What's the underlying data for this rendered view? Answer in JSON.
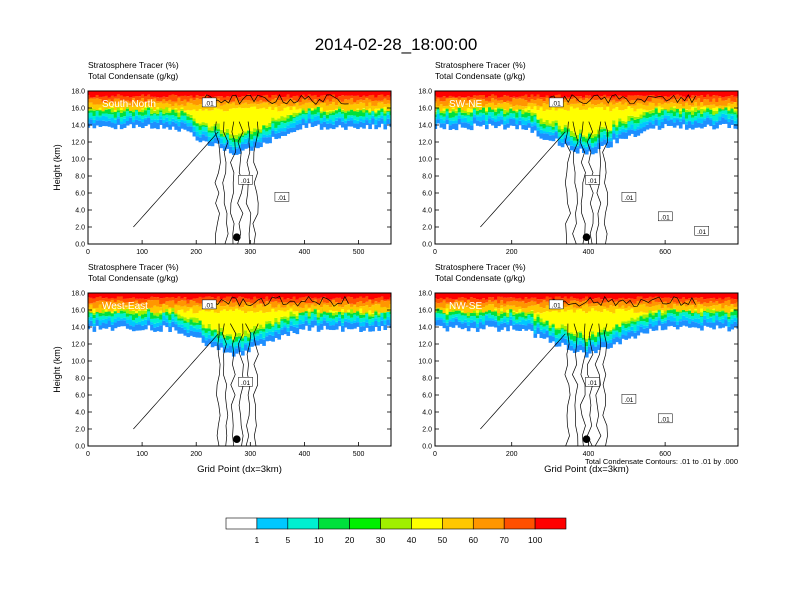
{
  "page_title": "2014-02-28_18:00:00",
  "footnote": "Total Condensate Contours: .01 to .01 by .000",
  "colorbar": {
    "levels": [
      "1",
      "5",
      "10",
      "20",
      "30",
      "40",
      "50",
      "60",
      "70",
      "100"
    ],
    "colors": [
      "#ffffff",
      "#1e8fff",
      "#00c8ff",
      "#00f0d0",
      "#00e03c",
      "#00f000",
      "#a0f000",
      "#ffff00",
      "#ffc800",
      "#ff9600",
      "#ff5000",
      "#ff0000"
    ]
  },
  "chart_data": [
    {
      "type": "heatmap",
      "panel_label": "South-North",
      "subtitle_line1": "Stratosphere Tracer   (%)",
      "subtitle_line2": "Total Condensate   (g/kg)",
      "ylabel": "Height (km)",
      "xlabel": "",
      "xlim": [
        0,
        560
      ],
      "ylim": [
        0,
        18
      ],
      "x_ticks": [
        0,
        100,
        200,
        300,
        400,
        500
      ],
      "y_ticks": [
        "0.0",
        "2.0",
        "4.0",
        "6.0",
        "8.0",
        "10.0",
        "12.0",
        "14.0",
        "16.0",
        "18.0"
      ],
      "contour_labels": [
        ".01",
        ".01",
        ".01"
      ],
      "marker_x": 275
    },
    {
      "type": "heatmap",
      "panel_label": "SW-NE",
      "subtitle_line1": "Stratosphere Tracer   (%)",
      "subtitle_line2": "Total Condensate   (g/kg)",
      "ylabel": "",
      "xlabel": "",
      "xlim": [
        0,
        790
      ],
      "ylim": [
        0,
        18
      ],
      "x_ticks": [
        0,
        200,
        400,
        600
      ],
      "y_ticks": [
        "0.0",
        "2.0",
        "4.0",
        "6.0",
        "8.0",
        "10.0",
        "12.0",
        "14.0",
        "16.0",
        "18.0"
      ],
      "contour_labels": [
        ".01",
        ".01",
        ".01",
        ".01",
        ".01"
      ],
      "marker_x": 395
    },
    {
      "type": "heatmap",
      "panel_label": "West-East",
      "subtitle_line1": "Stratosphere Tracer   (%)",
      "subtitle_line2": "Total Condensate   (g/kg)",
      "ylabel": "Height (km)",
      "xlabel": "Grid Point (dx=3km)",
      "xlim": [
        0,
        560
      ],
      "ylim": [
        0,
        18
      ],
      "x_ticks": [
        0,
        100,
        200,
        300,
        400,
        500
      ],
      "y_ticks": [
        "0.0",
        "2.0",
        "4.0",
        "6.0",
        "8.0",
        "10.0",
        "12.0",
        "14.0",
        "16.0",
        "18.0"
      ],
      "contour_labels": [
        ".01",
        ".01"
      ],
      "marker_x": 275
    },
    {
      "type": "heatmap",
      "panel_label": "NW-SE",
      "subtitle_line1": "Stratosphere Tracer   (%)",
      "subtitle_line2": "Total Condensate   (g/kg)",
      "ylabel": "",
      "xlabel": "Grid Point (dx=3km)",
      "xlim": [
        0,
        790
      ],
      "ylim": [
        0,
        18
      ],
      "x_ticks": [
        0,
        200,
        400,
        600
      ],
      "y_ticks": [
        "0.0",
        "2.0",
        "4.0",
        "6.0",
        "8.0",
        "10.0",
        "12.0",
        "14.0",
        "16.0",
        "18.0"
      ],
      "contour_labels": [
        ".01",
        ".01",
        ".01",
        ".01"
      ],
      "marker_x": 395
    }
  ]
}
